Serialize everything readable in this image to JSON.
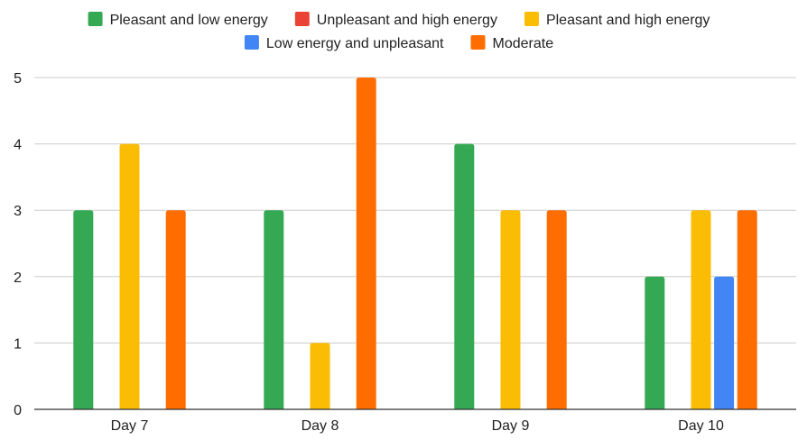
{
  "chart_data": {
    "type": "bar",
    "title": "",
    "xlabel": "",
    "ylabel": "",
    "categories": [
      "Day 7",
      "Day 8",
      "Day 9",
      "Day 10"
    ],
    "ylim": [
      0,
      5
    ],
    "yticks": [
      "0",
      "1",
      "2",
      "3",
      "4",
      "5"
    ],
    "grid": true,
    "legend_position": "top",
    "series": [
      {
        "name": "Pleasant and low energy",
        "color": "#34a853",
        "values": [
          3,
          3,
          4,
          2
        ]
      },
      {
        "name": "Unpleasant and high energy",
        "color": "#ea4335",
        "values": [
          0,
          0,
          0,
          0
        ]
      },
      {
        "name": "Pleasant and high energy",
        "color": "#fbbc04",
        "values": [
          4,
          1,
          3,
          3
        ]
      },
      {
        "name": "Low energy and unpleasant",
        "color": "#4285f4",
        "values": [
          0,
          0,
          0,
          2
        ]
      },
      {
        "name": "Moderate",
        "color": "#ff6d01",
        "values": [
          3,
          5,
          3,
          3
        ]
      }
    ]
  }
}
